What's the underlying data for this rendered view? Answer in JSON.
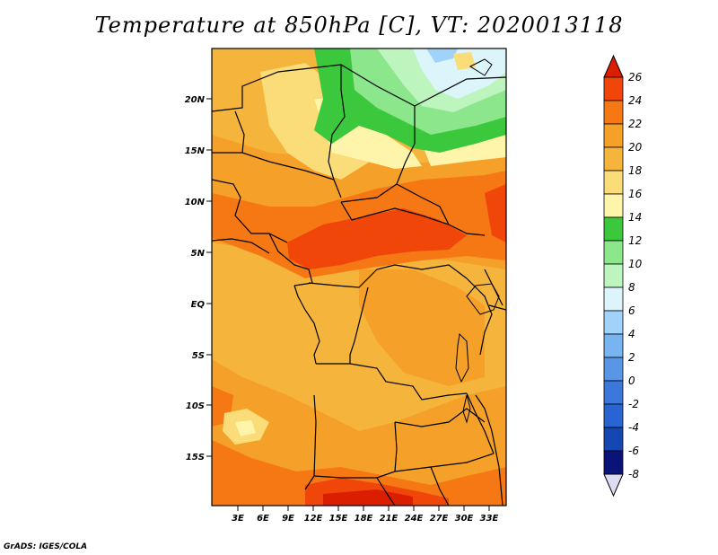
{
  "title": "Temperature at 850hPa [C], VT: 2020013118",
  "credit": "GrADS: IGES/COLA",
  "colors": {
    "c26": "#dc1e00",
    "c24": "#f0460a",
    "c22": "#f57814",
    "c20": "#f5a028",
    "c18": "#f5b43c",
    "c16": "#fadc78",
    "c14": "#fff5aa",
    "c12": "#3cc83c",
    "c10": "#8ce68c",
    "c8": "#bef5be",
    "c6": "#dcf5fa",
    "c4": "#a0d2fa",
    "c2": "#78b4f0",
    "c0": "#5a96e6",
    "cm2": "#3c78dc",
    "cm4": "#2864d2",
    "cm6": "#1446b4",
    "cm8": "#0a1478",
    "below": "#dcdcf5"
  },
  "map": {
    "lat_labels": [
      "20N",
      "15N",
      "10N",
      "5N",
      "EQ",
      "5S",
      "10S",
      "15S"
    ],
    "lon_labels": [
      "3E",
      "6E",
      "9E",
      "12E",
      "15E",
      "18E",
      "21E",
      "24E",
      "27E",
      "30E",
      "33E"
    ]
  },
  "colorbar": {
    "labels": [
      "26",
      "24",
      "22",
      "20",
      "18",
      "16",
      "14",
      "12",
      "10",
      "8",
      "6",
      "4",
      "2",
      "0",
      "-2",
      "-4",
      "-6",
      "-8"
    ]
  }
}
